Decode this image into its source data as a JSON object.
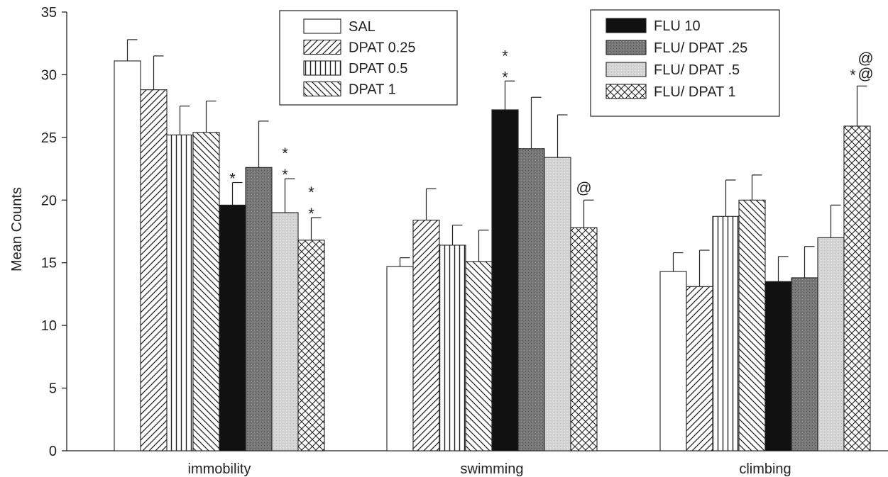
{
  "chart_data": {
    "type": "bar",
    "ylabel": "Mean Counts",
    "xlabel": "",
    "ylim": [
      0,
      35
    ],
    "yticks": [
      0,
      5,
      10,
      15,
      20,
      25,
      30,
      35
    ],
    "grid": false,
    "categories": [
      "immobility",
      "swimming",
      "climbing"
    ],
    "series": [
      {
        "name": "SAL",
        "pattern": "white",
        "values": [
          31.1,
          14.7,
          14.3
        ],
        "errors": [
          1.7,
          0.7,
          1.5
        ],
        "annotations": [
          "",
          "",
          ""
        ]
      },
      {
        "name": "DPAT 0.25",
        "pattern": "diag-fwd",
        "values": [
          28.8,
          18.4,
          13.1
        ],
        "errors": [
          2.7,
          2.5,
          2.9
        ],
        "annotations": [
          "",
          "",
          ""
        ]
      },
      {
        "name": "DPAT 0.5",
        "pattern": "vertical",
        "values": [
          25.2,
          16.4,
          18.7
        ],
        "errors": [
          2.3,
          1.6,
          2.9
        ],
        "annotations": [
          "",
          "",
          ""
        ]
      },
      {
        "name": "DPAT 1",
        "pattern": "diag-back",
        "values": [
          25.4,
          15.1,
          20.0
        ],
        "errors": [
          2.5,
          2.5,
          2.0
        ],
        "annotations": [
          "",
          "",
          ""
        ]
      },
      {
        "name": "FLU 10",
        "pattern": "black",
        "values": [
          19.6,
          27.2,
          13.5
        ],
        "errors": [
          1.8,
          2.3,
          2.0
        ],
        "annotations": [
          "*",
          "* *",
          ""
        ]
      },
      {
        "name": "FLU/ DPAT .25",
        "pattern": "dark-gray",
        "values": [
          22.6,
          24.1,
          13.8
        ],
        "errors": [
          3.7,
          4.1,
          2.5
        ],
        "annotations": [
          "",
          "",
          ""
        ]
      },
      {
        "name": "FLU/ DPAT .5",
        "pattern": "light-gray",
        "values": [
          19.0,
          23.4,
          17.0
        ],
        "errors": [
          2.7,
          3.4,
          2.6
        ],
        "annotations": [
          "* *",
          "",
          ""
        ]
      },
      {
        "name": "FLU/ DPAT 1",
        "pattern": "crosshatch",
        "values": [
          16.8,
          17.8,
          25.9
        ],
        "errors": [
          1.8,
          2.2,
          3.2
        ],
        "annotations": [
          "* *",
          "@",
          "* @ @"
        ]
      }
    ],
    "legends": [
      {
        "position": "top-center",
        "entries": [
          "SAL",
          "DPAT 0.25",
          "DPAT 0.5",
          "DPAT 1"
        ]
      },
      {
        "position": "top-right",
        "entries": [
          "FLU 10",
          "FLU/ DPAT .25",
          "FLU/ DPAT .5",
          "FLU/ DPAT 1"
        ]
      }
    ]
  }
}
